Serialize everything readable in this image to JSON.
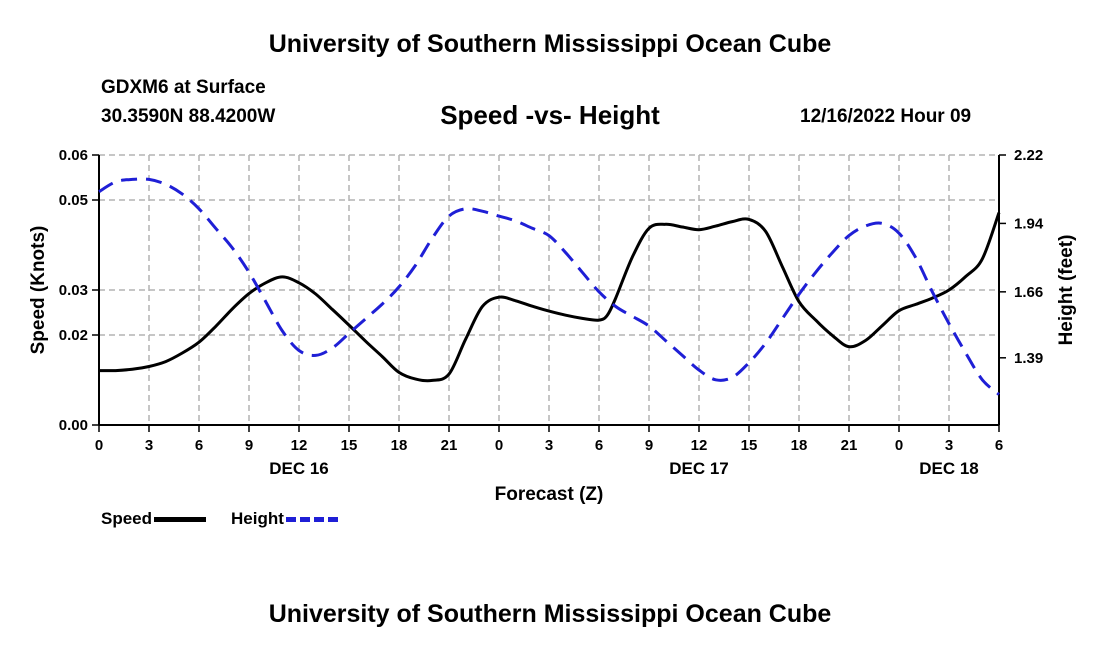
{
  "header": {
    "title": "University of Southern Mississippi Ocean Cube",
    "station": "GDXM6 at Surface",
    "coords": "30.3590N  88.4200W",
    "subtitle": "Speed -vs- Height",
    "datetime": "12/16/2022 Hour 09"
  },
  "footer": {
    "title": "University of Southern Mississippi Ocean Cube"
  },
  "legend": {
    "speed_label": "Speed",
    "height_label": "Height"
  },
  "colors": {
    "speed": "#000000",
    "height": "#1f1fd6",
    "grid": "#b4b4b4"
  },
  "chart_data": {
    "type": "line",
    "title": "Speed -vs- Height",
    "xlabel": "Forecast (Z)",
    "ylabel_left": "Speed (Knots)",
    "ylabel_right": "Height (feet)",
    "x_range_hours": [
      0,
      54
    ],
    "x_tick_labels": [
      "0",
      "3",
      "6",
      "9",
      "12",
      "15",
      "18",
      "21",
      "0",
      "3",
      "6",
      "9",
      "12",
      "15",
      "18",
      "21",
      "0",
      "3",
      "6"
    ],
    "x_tick_hours": [
      0,
      3,
      6,
      9,
      12,
      15,
      18,
      21,
      24,
      27,
      30,
      33,
      36,
      39,
      42,
      45,
      48,
      51,
      54
    ],
    "day_labels": [
      {
        "label": "DEC 16",
        "hour": 12
      },
      {
        "label": "DEC 17",
        "hour": 36
      },
      {
        "label": "DEC 18",
        "hour": 51
      }
    ],
    "y_left": {
      "range": [
        0.0,
        0.06
      ],
      "ticks": [
        0.0,
        0.02,
        0.03,
        0.05,
        0.06
      ],
      "tick_labels": [
        "0.00",
        "0.02",
        "0.03",
        "0.05",
        "0.06"
      ]
    },
    "y_right": {
      "range": [
        1.115,
        2.22
      ],
      "ticks": [
        1.39,
        1.66,
        1.94,
        2.22
      ],
      "tick_labels": [
        "1.39",
        "1.66",
        "1.94",
        "2.22"
      ]
    },
    "grid": true,
    "series": [
      {
        "name": "Speed",
        "axis": "left",
        "style": "solid",
        "points": [
          [
            0,
            0.0121
          ],
          [
            1,
            0.0121
          ],
          [
            2,
            0.0124
          ],
          [
            3,
            0.013
          ],
          [
            4,
            0.0141
          ],
          [
            5,
            0.016
          ],
          [
            6,
            0.0184
          ],
          [
            7,
            0.0219
          ],
          [
            8,
            0.0258
          ],
          [
            9,
            0.0292
          ],
          [
            10,
            0.0316
          ],
          [
            11,
            0.0329
          ],
          [
            12,
            0.0316
          ],
          [
            13,
            0.0291
          ],
          [
            14,
            0.0257
          ],
          [
            15,
            0.0222
          ],
          [
            16,
            0.0186
          ],
          [
            17,
            0.0152
          ],
          [
            18,
            0.0117
          ],
          [
            19,
            0.0102
          ],
          [
            20,
            0.0099
          ],
          [
            21,
            0.0113
          ],
          [
            22,
            0.0191
          ],
          [
            23,
            0.0263
          ],
          [
            24,
            0.0284
          ],
          [
            25,
            0.0276
          ],
          [
            26,
            0.0264
          ],
          [
            27,
            0.0253
          ],
          [
            28,
            0.0244
          ],
          [
            29,
            0.0237
          ],
          [
            30,
            0.0233
          ],
          [
            30.5,
            0.0244
          ],
          [
            31,
            0.0282
          ],
          [
            32,
            0.0373
          ],
          [
            33,
            0.0437
          ],
          [
            34,
            0.0446
          ],
          [
            35,
            0.044
          ],
          [
            36,
            0.0434
          ],
          [
            37,
            0.0442
          ],
          [
            38,
            0.0452
          ],
          [
            39,
            0.0457
          ],
          [
            40,
            0.043
          ],
          [
            41,
            0.0352
          ],
          [
            42,
            0.0274
          ],
          [
            43,
            0.0233
          ],
          [
            44,
            0.0199
          ],
          [
            45,
            0.0174
          ],
          [
            46,
            0.0188
          ],
          [
            47,
            0.0221
          ],
          [
            48,
            0.0254
          ],
          [
            49,
            0.0268
          ],
          [
            50,
            0.0282
          ],
          [
            51,
            0.03
          ],
          [
            52,
            0.033
          ],
          [
            53,
            0.0369
          ],
          [
            54,
            0.0472
          ]
        ]
      },
      {
        "name": "Height",
        "axis": "right",
        "style": "dashed",
        "points": [
          [
            0,
            2.07
          ],
          [
            1,
            2.11
          ],
          [
            2,
            2.12
          ],
          [
            3,
            2.12
          ],
          [
            4,
            2.1
          ],
          [
            5,
            2.06
          ],
          [
            6,
            2.0
          ],
          [
            7,
            1.92
          ],
          [
            8,
            1.84
          ],
          [
            9,
            1.74
          ],
          [
            10,
            1.62
          ],
          [
            11,
            1.5
          ],
          [
            12,
            1.42
          ],
          [
            13,
            1.4
          ],
          [
            14,
            1.43
          ],
          [
            15,
            1.49
          ],
          [
            16,
            1.55
          ],
          [
            17,
            1.61
          ],
          [
            18,
            1.68
          ],
          [
            19,
            1.77
          ],
          [
            20,
            1.88
          ],
          [
            21,
            1.97
          ],
          [
            22,
            2.0
          ],
          [
            23,
            1.99
          ],
          [
            24,
            1.97
          ],
          [
            25,
            1.95
          ],
          [
            26,
            1.92
          ],
          [
            27,
            1.89
          ],
          [
            28,
            1.82
          ],
          [
            29,
            1.74
          ],
          [
            30,
            1.66
          ],
          [
            31,
            1.6
          ],
          [
            32,
            1.56
          ],
          [
            33,
            1.52
          ],
          [
            34,
            1.46
          ],
          [
            35,
            1.4
          ],
          [
            36,
            1.34
          ],
          [
            37,
            1.3
          ],
          [
            38,
            1.31
          ],
          [
            39,
            1.37
          ],
          [
            40,
            1.45
          ],
          [
            41,
            1.55
          ],
          [
            42,
            1.65
          ],
          [
            43,
            1.74
          ],
          [
            44,
            1.82
          ],
          [
            45,
            1.89
          ],
          [
            46,
            1.93
          ],
          [
            47,
            1.94
          ],
          [
            48,
            1.9
          ],
          [
            49,
            1.8
          ],
          [
            50,
            1.66
          ],
          [
            51,
            1.53
          ],
          [
            52,
            1.41
          ],
          [
            53,
            1.3
          ],
          [
            54,
            1.24
          ]
        ]
      }
    ]
  }
}
